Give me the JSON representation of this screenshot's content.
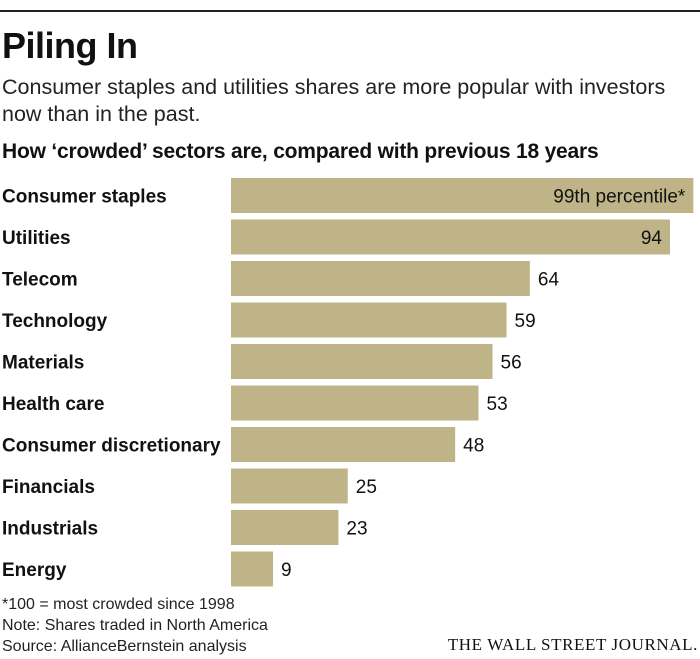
{
  "header": {
    "title": "Piling In",
    "subtitle": "Consumer staples and utilities shares are more popular with investors now than in the past."
  },
  "chart_data": {
    "type": "bar",
    "orientation": "horizontal",
    "title": "How ‘crowded’ sectors are, compared with previous 18 years",
    "categories": [
      "Consumer staples",
      "Utilities",
      "Telecom",
      "Technology",
      "Materials",
      "Health care",
      "Consumer discretionary",
      "Financials",
      "Industrials",
      "Energy"
    ],
    "values": [
      99,
      94,
      64,
      59,
      56,
      53,
      48,
      25,
      23,
      9
    ],
    "value_labels": [
      "99th percentile*",
      "94",
      "64",
      "59",
      "56",
      "53",
      "48",
      "25",
      "23",
      "9"
    ],
    "xlim": [
      0,
      100
    ],
    "xlabel": "",
    "ylabel": "",
    "grid": false,
    "bar_color": "#bfb487"
  },
  "footer": {
    "footnote": "*100 = most crowded since 1998",
    "note": "Note: Shares traded in North America",
    "source": "Source: AllianceBernstein analysis",
    "credit": "THE WALL STREET JOURNAL."
  }
}
